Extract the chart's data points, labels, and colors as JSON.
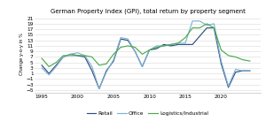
{
  "title": "German Property Index (GPI), total return by property segment",
  "ylabel": "Change y-o-y in %",
  "yticks": [
    -5,
    -3,
    -1,
    1,
    3,
    5,
    7,
    9,
    11,
    13,
    15,
    17,
    19,
    21
  ],
  "ylim": [
    -6,
    22
  ],
  "xlim": [
    1994,
    2025.5
  ],
  "xticks": [
    1995,
    2000,
    2005,
    2010,
    2015,
    2020
  ],
  "legend": [
    "Retail",
    "Office",
    "Logistics/Industrial"
  ],
  "retail_color": "#2d4e7e",
  "office_color": "#7fb3d3",
  "logistics_color": "#4eaa4e",
  "years": [
    1995,
    1996,
    1997,
    1998,
    1999,
    2000,
    2001,
    2002,
    2003,
    2004,
    2005,
    2006,
    2007,
    2008,
    2009,
    2010,
    2011,
    2012,
    2013,
    2014,
    2015,
    2016,
    2017,
    2018,
    2019,
    2020,
    2021,
    2022,
    2023,
    2024
  ],
  "retail": [
    4.0,
    1.0,
    4.0,
    7.0,
    8.0,
    7.5,
    7.0,
    2.0,
    -4.5,
    2.0,
    5.5,
    13.5,
    13.0,
    9.0,
    3.5,
    9.5,
    10.0,
    11.5,
    11.0,
    11.5,
    11.5,
    11.5,
    14.5,
    17.5,
    17.5,
    4.5,
    -4.0,
    1.5,
    2.0,
    2.0
  ],
  "office": [
    3.0,
    0.5,
    3.5,
    7.0,
    8.0,
    8.5,
    7.5,
    3.5,
    -4.5,
    1.5,
    6.0,
    14.0,
    13.5,
    9.0,
    3.5,
    9.5,
    11.0,
    11.0,
    11.5,
    12.0,
    12.0,
    20.0,
    20.0,
    18.5,
    19.0,
    5.5,
    -3.5,
    2.5,
    2.0,
    2.0
  ],
  "logistics": [
    6.5,
    3.5,
    5.0,
    7.5,
    7.5,
    7.5,
    7.5,
    7.0,
    4.0,
    4.5,
    8.0,
    10.5,
    11.0,
    10.5,
    8.0,
    9.5,
    10.5,
    11.0,
    11.5,
    12.0,
    14.0,
    17.5,
    17.5,
    19.0,
    17.5,
    9.5,
    7.5,
    7.0,
    6.0,
    5.5
  ],
  "bg_color": "#ffffff",
  "grid_color": "#d8d8d8",
  "spine_color": "#b0b0b0",
  "title_fontsize": 5.0,
  "tick_fontsize": 4.2,
  "ylabel_fontsize": 3.8,
  "legend_fontsize": 4.2,
  "linewidth": 0.85
}
